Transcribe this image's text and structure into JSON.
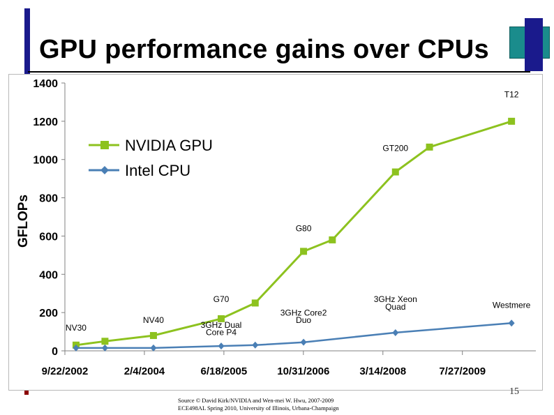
{
  "slide": {
    "title": "GPU performance gains over CPUs",
    "slide_number": "15",
    "source_line1": "Source © David Kirk/NVIDIA and Wen-mei W. Hwu, 2007-2009",
    "source_line2": "ECE498AL Spring 2010, University of Illinois, Urbana-Champaign"
  },
  "colors": {
    "gpu": "#8dc21f",
    "cpu": "#4a7fb5",
    "accent_navy": "#1a1a8c",
    "accent_teal": "#1a8c8c"
  },
  "chart_data": {
    "type": "line",
    "ylabel": "GFLOPs",
    "ylim": [
      0,
      1400
    ],
    "yticks": [
      0,
      200,
      400,
      600,
      800,
      1000,
      1200,
      1400
    ],
    "xlim": [
      "2002-09-22",
      "2010-11-01"
    ],
    "xticks": [
      "9/22/2002",
      "2/4/2004",
      "6/18/2005",
      "10/31/2006",
      "3/14/2008",
      "7/27/2009"
    ],
    "xtick_dates": [
      "2002-09-22",
      "2004-02-04",
      "2005-06-18",
      "2006-10-31",
      "2008-03-14",
      "2009-07-27"
    ],
    "grid": false,
    "legend": "top-left",
    "series": [
      {
        "name": "NVIDIA GPU",
        "marker": "square",
        "points": [
          {
            "x": "2002-12-01",
            "y": 30
          },
          {
            "x": "2003-06-01",
            "y": 50
          },
          {
            "x": "2004-04-01",
            "y": 80
          },
          {
            "x": "2005-06-01",
            "y": 168
          },
          {
            "x": "2006-01-01",
            "y": 250
          },
          {
            "x": "2006-11-01",
            "y": 520
          },
          {
            "x": "2007-05-01",
            "y": 580
          },
          {
            "x": "2008-06-01",
            "y": 935
          },
          {
            "x": "2009-01-01",
            "y": 1065
          },
          {
            "x": "2010-06-01",
            "y": 1200
          }
        ]
      },
      {
        "name": "Intel CPU",
        "marker": "diamond",
        "points": [
          {
            "x": "2002-12-01",
            "y": 15
          },
          {
            "x": "2003-06-01",
            "y": 15
          },
          {
            "x": "2004-04-01",
            "y": 15
          },
          {
            "x": "2005-06-01",
            "y": 25
          },
          {
            "x": "2006-01-01",
            "y": 30
          },
          {
            "x": "2006-11-01",
            "y": 45
          },
          {
            "x": "2008-06-01",
            "y": 95
          },
          {
            "x": "2010-06-01",
            "y": 145
          }
        ]
      }
    ],
    "annotations": [
      {
        "text": "NV30",
        "x": "2002-12-01",
        "y": 105
      },
      {
        "text": "NV40",
        "x": "2004-04-01",
        "y": 145
      },
      {
        "text": "G70",
        "x": "2005-06-01",
        "y": 255
      },
      {
        "text": "3GHz Dual",
        "x": "2005-06-01",
        "y": 120
      },
      {
        "text": "Core P4",
        "x": "2005-06-01",
        "y": 82
      },
      {
        "text": "3GHz Core2",
        "x": "2006-11-01",
        "y": 185
      },
      {
        "text": "Duo",
        "x": "2006-11-01",
        "y": 145
      },
      {
        "text": "G80",
        "x": "2006-11-01",
        "y": 625
      },
      {
        "text": "3GHz Xeon",
        "x": "2008-06-01",
        "y": 255
      },
      {
        "text": "Quad",
        "x": "2008-06-01",
        "y": 215
      },
      {
        "text": "GT200",
        "x": "2008-06-01",
        "y": 1045
      },
      {
        "text": "T12",
        "x": "2010-06-01",
        "y": 1325
      },
      {
        "text": "Westmere",
        "x": "2010-06-01",
        "y": 225
      }
    ]
  }
}
